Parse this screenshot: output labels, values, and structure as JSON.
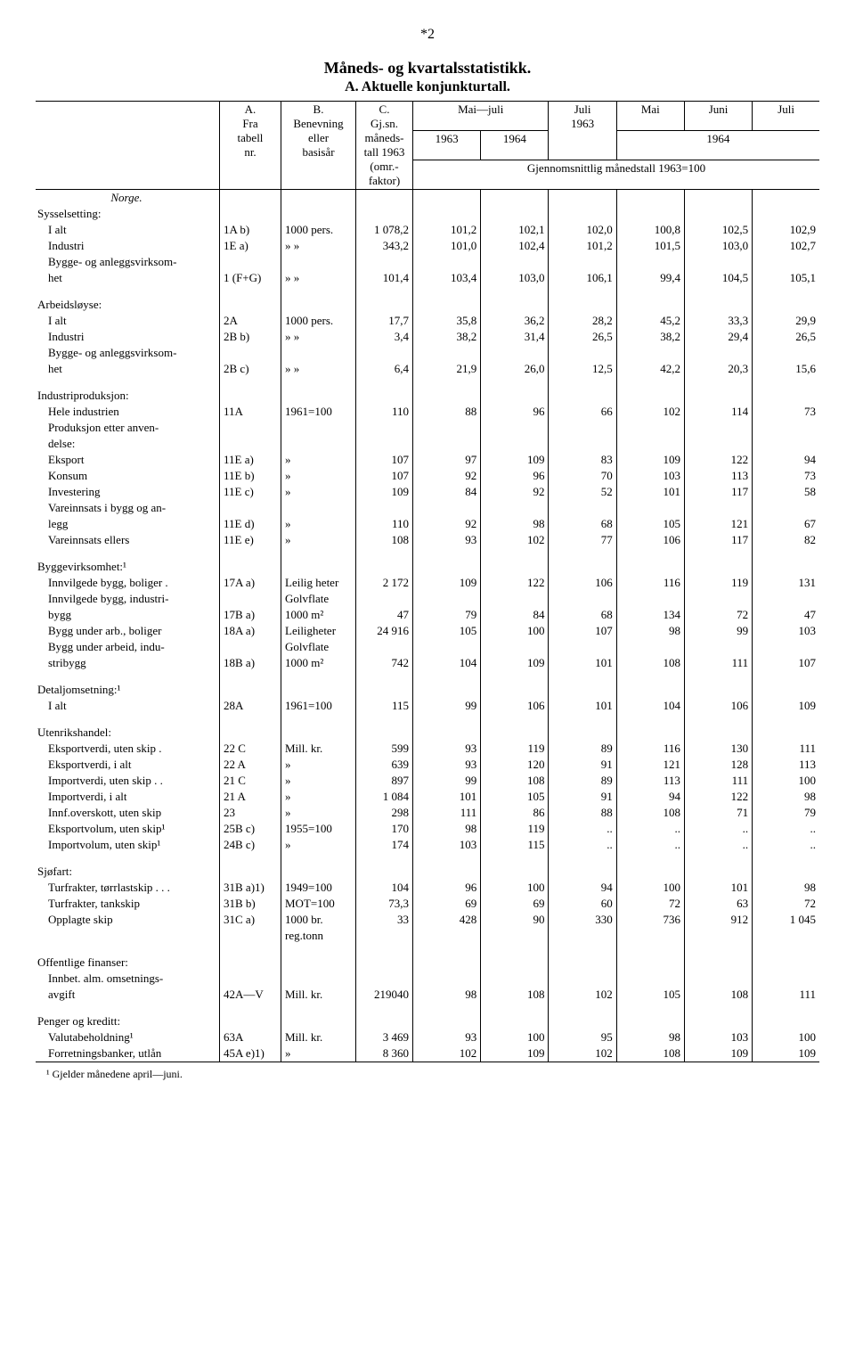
{
  "page_number": "*2",
  "title": "Måneds- og kvartalsstatistikk.",
  "subtitle": "A. Aktuelle konjunkturtall.",
  "header": {
    "colA": "A.\nFra\ntabell\nnr.",
    "colB": "B.\nBenevning\neller\nbasisår",
    "colC": "C.\nGj.sn.\nmåneds-\ntall 1963\n(omr.-\nfaktor)",
    "mai_juli": "Mai—juli",
    "y1963": "1963",
    "y1964": "1964",
    "juli": "Juli",
    "juli1963": "1963",
    "mai": "Mai",
    "juni": "Juni",
    "juli2": "Juli",
    "y1964b": "1964",
    "index_note": "Gjennomsnittlig månedstall 1963=100"
  },
  "sections": [
    {
      "heading": "Norge.",
      "subheading": "Sysselsetting:",
      "rows": [
        {
          "label": "I alt",
          "a": "1A b)",
          "b": "1000 pers.",
          "c": "1 078,2",
          "v": [
            "101,2",
            "102,1",
            "102,0",
            "100,8",
            "102,5",
            "102,9"
          ]
        },
        {
          "label": "Industri",
          "a": "1E a)",
          "b": "»      »",
          "c": "343,2",
          "v": [
            "101,0",
            "102,4",
            "101,2",
            "101,5",
            "103,0",
            "102,7"
          ]
        },
        {
          "label": "Bygge- og anleggsvirksom-",
          "wrap": true
        },
        {
          "label": "het",
          "indent": true,
          "a": "1 (F+G)",
          "b": "»      »",
          "c": "101,4",
          "v": [
            "103,4",
            "103,0",
            "106,1",
            "99,4",
            "104,5",
            "105,1"
          ]
        }
      ]
    },
    {
      "subheading": "Arbeidsløyse:",
      "rows": [
        {
          "label": "I alt",
          "a": "2A",
          "b": "1000 pers.",
          "c": "17,7",
          "v": [
            "35,8",
            "36,2",
            "28,2",
            "45,2",
            "33,3",
            "29,9"
          ]
        },
        {
          "label": "Industri",
          "a": "2B b)",
          "b": "»      »",
          "c": "3,4",
          "v": [
            "38,2",
            "31,4",
            "26,5",
            "38,2",
            "29,4",
            "26,5"
          ]
        },
        {
          "label": "Bygge- og anleggsvirksom-",
          "wrap": true
        },
        {
          "label": "het",
          "indent": true,
          "a": "2B c)",
          "b": "»      »",
          "c": "6,4",
          "v": [
            "21,9",
            "26,0",
            "12,5",
            "42,2",
            "20,3",
            "15,6"
          ]
        }
      ]
    },
    {
      "subheading": "Industriproduksjon:",
      "rows": [
        {
          "label": "Hele industrien",
          "a": "11A",
          "b": "1961=100",
          "c": "110",
          "v": [
            "88",
            "96",
            "66",
            "102",
            "114",
            "73"
          ]
        },
        {
          "label": "Produksjon etter anven-",
          "wrap": true
        },
        {
          "label": "delse:",
          "indent": true,
          "wrap": true
        },
        {
          "label": "Eksport",
          "a": "11E a)",
          "b": "»",
          "c": "107",
          "v": [
            "97",
            "109",
            "83",
            "109",
            "122",
            "94"
          ]
        },
        {
          "label": "Konsum",
          "a": "11E b)",
          "b": "»",
          "c": "107",
          "v": [
            "92",
            "96",
            "70",
            "103",
            "113",
            "73"
          ]
        },
        {
          "label": "Investering",
          "a": "11E c)",
          "b": "»",
          "c": "109",
          "v": [
            "84",
            "92",
            "52",
            "101",
            "117",
            "58"
          ]
        },
        {
          "label": "Vareinnsats i bygg og an-",
          "wrap": true
        },
        {
          "label": "legg",
          "indent": true,
          "a": "11E d)",
          "b": "»",
          "c": "110",
          "v": [
            "92",
            "98",
            "68",
            "105",
            "121",
            "67"
          ]
        },
        {
          "label": "Vareinnsats ellers",
          "a": "11E e)",
          "b": "»",
          "c": "108",
          "v": [
            "93",
            "102",
            "77",
            "106",
            "117",
            "82"
          ]
        }
      ]
    },
    {
      "subheading": "Byggevirksomhet:¹",
      "rows": [
        {
          "label": "Innvilgede bygg, boliger .",
          "a": "17A a)",
          "b": "Leilig heter",
          "c": "2 172",
          "v": [
            "109",
            "122",
            "106",
            "116",
            "119",
            "131"
          ]
        },
        {
          "label": "Innvilgede bygg, industri-",
          "wrap": true,
          "b": "Golvflate"
        },
        {
          "label": "bygg",
          "indent": true,
          "a": "17B a)",
          "b": "1000 m²",
          "c": "47",
          "v": [
            "79",
            "84",
            "68",
            "134",
            "72",
            "47"
          ]
        },
        {
          "label": "Bygg under arb., boliger",
          "a": "18A a)",
          "b": "Leiligheter",
          "c": "24 916",
          "v": [
            "105",
            "100",
            "107",
            "98",
            "99",
            "103"
          ]
        },
        {
          "label": "Bygg under arbeid, indu-",
          "wrap": true,
          "b": "Golvflate"
        },
        {
          "label": "stribygg",
          "indent": true,
          "a": "18B a)",
          "b": "1000 m²",
          "c": "742",
          "v": [
            "104",
            "109",
            "101",
            "108",
            "111",
            "107"
          ]
        }
      ]
    },
    {
      "subheading": "Detaljomsetning:¹",
      "rows": [
        {
          "label": "I alt",
          "a": "28A",
          "b": "1961=100",
          "c": "115",
          "v": [
            "99",
            "106",
            "101",
            "104",
            "106",
            "109"
          ]
        }
      ]
    },
    {
      "subheading": "Utenrikshandel:",
      "rows": [
        {
          "label": "Eksportverdi, uten skip .",
          "a": "22 C",
          "b": "Mill. kr.",
          "c": "599",
          "v": [
            "93",
            "119",
            "89",
            "116",
            "130",
            "111"
          ]
        },
        {
          "label": "Eksportverdi, i alt",
          "a": "22 A",
          "b": "»",
          "c": "639",
          "v": [
            "93",
            "120",
            "91",
            "121",
            "128",
            "113"
          ]
        },
        {
          "label": "Importverdi, uten skip . .",
          "a": "21 C",
          "b": "»",
          "c": "897",
          "v": [
            "99",
            "108",
            "89",
            "113",
            "111",
            "100"
          ]
        },
        {
          "label": "Importverdi, i alt",
          "a": "21 A",
          "b": "»",
          "c": "1 084",
          "v": [
            "101",
            "105",
            "91",
            "94",
            "122",
            "98"
          ]
        },
        {
          "label": "Innf.overskott, uten skip",
          "a": "23",
          "b": "»",
          "c": "298",
          "v": [
            "111",
            "86",
            "88",
            "108",
            "71",
            "79"
          ]
        },
        {
          "label": "Eksportvolum, uten skip¹",
          "a": "25B c)",
          "b": "1955=100",
          "c": "170",
          "v": [
            "98",
            "119",
            "..",
            "..",
            "..",
            ".."
          ]
        },
        {
          "label": "Importvolum, uten skip¹",
          "a": "24B c)",
          "b": "»",
          "c": "174",
          "v": [
            "103",
            "115",
            "..",
            "..",
            "..",
            ".."
          ]
        }
      ]
    },
    {
      "subheading": "Sjøfart:",
      "rows": [
        {
          "label": "Turfrakter, tørrlastskip . . .",
          "a": "31B a)1)",
          "b": "1949=100",
          "c": "104",
          "v": [
            "96",
            "100",
            "94",
            "100",
            "101",
            "98"
          ]
        },
        {
          "label": "Turfrakter, tankskip",
          "a": "31B b)",
          "b": "MOT=100",
          "c": "73,3",
          "v": [
            "69",
            "69",
            "60",
            "72",
            "63",
            "72"
          ]
        },
        {
          "label": "Opplagte skip",
          "a": "31C a)",
          "b": "1000 br.",
          "c": "33",
          "v": [
            "428",
            "90",
            "330",
            "736",
            "912",
            "1 045"
          ]
        },
        {
          "label": "",
          "a": "",
          "b": "reg.tonn",
          "wrap": true
        }
      ]
    },
    {
      "subheading": "Offentlige finanser:",
      "rows": [
        {
          "label": "Innbet. alm. omsetnings-",
          "wrap": true
        },
        {
          "label": "avgift",
          "indent": true,
          "a": "42A—V",
          "b": "Mill. kr.",
          "c": "219040",
          "v": [
            "98",
            "108",
            "102",
            "105",
            "108",
            "111"
          ]
        }
      ]
    },
    {
      "subheading": "Penger og kreditt:",
      "rows": [
        {
          "label": "Valutabeholdning¹",
          "a": "63A",
          "b": "Mill. kr.",
          "c": "3 469",
          "v": [
            "93",
            "100",
            "95",
            "98",
            "103",
            "100"
          ]
        },
        {
          "label": "Forretningsbanker, utlån",
          "a": "45A e)1)",
          "b": "»",
          "c": "8 360",
          "v": [
            "102",
            "109",
            "102",
            "108",
            "109",
            "109"
          ]
        }
      ]
    }
  ],
  "footnote": "¹ Gjelder månedene april—juni."
}
